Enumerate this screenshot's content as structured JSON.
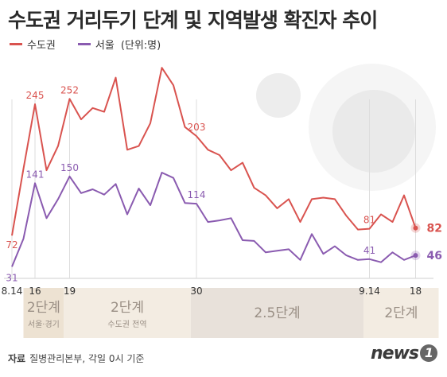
{
  "title": "수도권 거리두기 단계 및 지역발생 확진자 추이",
  "legend": {
    "capital": "수도권",
    "seoul": "서울",
    "unit": "(단위:명)"
  },
  "source": {
    "label": "자료",
    "text": "질병관리본부, 각일 0시 기준"
  },
  "logo": {
    "text": "news",
    "mark": "1"
  },
  "colors": {
    "capital": "#d9534f",
    "seoul": "#8a5bb0"
  },
  "chart_data": {
    "type": "line",
    "x_ticks": [
      {
        "index": 0,
        "label": "8.14"
      },
      {
        "index": 2,
        "label": "16"
      },
      {
        "index": 5,
        "label": "19"
      },
      {
        "index": 16,
        "label": "30"
      },
      {
        "index": 31,
        "label": "9.14"
      },
      {
        "index": 35,
        "label": "18"
      }
    ],
    "ylim": [
      0,
      300
    ],
    "series": [
      {
        "name": "수도권",
        "color": "#d9534f",
        "values": [
          72,
          160,
          245,
          158,
          190,
          252,
          225,
          240,
          235,
          280,
          185,
          190,
          220,
          293,
          270,
          215,
          203,
          185,
          178,
          158,
          168,
          135,
          125,
          108,
          120,
          90,
          120,
          122,
          120,
          98,
          80,
          81,
          100,
          90,
          125,
          82
        ],
        "labels": [
          {
            "index": 0,
            "text": "72"
          },
          {
            "index": 2,
            "text": "245"
          },
          {
            "index": 5,
            "text": "252"
          },
          {
            "index": 16,
            "text": "203"
          },
          {
            "index": 31,
            "text": "81"
          },
          {
            "index": 35,
            "text": "82"
          }
        ]
      },
      {
        "name": "서울",
        "color": "#8a5bb0",
        "values": [
          31,
          68,
          141,
          95,
          120,
          150,
          128,
          133,
          126,
          140,
          100,
          134,
          112,
          155,
          148,
          115,
          114,
          90,
          92,
          95,
          66,
          65,
          50,
          52,
          54,
          40,
          74,
          48,
          58,
          46,
          40,
          41,
          37,
          50,
          40,
          46
        ],
        "labels": [
          {
            "index": 0,
            "text": "31"
          },
          {
            "index": 2,
            "text": "141"
          },
          {
            "index": 5,
            "text": "150"
          },
          {
            "index": 16,
            "text": "114"
          },
          {
            "index": 31,
            "text": "41"
          },
          {
            "index": 35,
            "text": "46"
          }
        ]
      }
    ],
    "phases": [
      {
        "start": 1,
        "end": 4.5,
        "label": "2단계",
        "sub": "서울·경기"
      },
      {
        "start": 4.5,
        "end": 15.5,
        "label": "2단계",
        "sub": "수도권 전역"
      },
      {
        "start": 15.5,
        "end": 30.5,
        "label": "2.5단계",
        "sub": ""
      },
      {
        "start": 30.5,
        "end": 37,
        "label": "2단계",
        "sub": ""
      }
    ]
  }
}
